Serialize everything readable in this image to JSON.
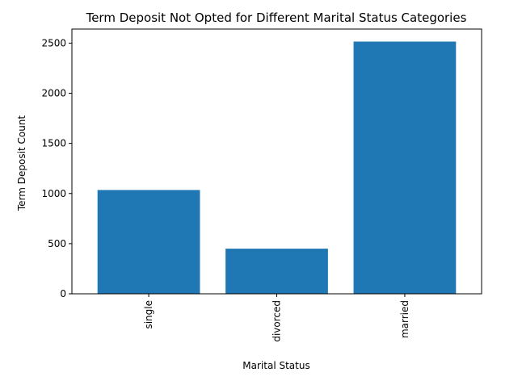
{
  "chart_data": {
    "type": "bar",
    "title": "Term Deposit Not Opted for Different Marital Status Categories",
    "xlabel": "Marital Status",
    "ylabel": "Term Deposit Count",
    "categories": [
      "single",
      "divorced",
      "married"
    ],
    "values": [
      1035,
      450,
      2515
    ],
    "ylim": [
      0,
      2640
    ],
    "yticks": [
      0,
      500,
      1000,
      1500,
      2000,
      2500
    ],
    "bar_color": "#1f77b4",
    "grid": false,
    "legend": "none"
  }
}
